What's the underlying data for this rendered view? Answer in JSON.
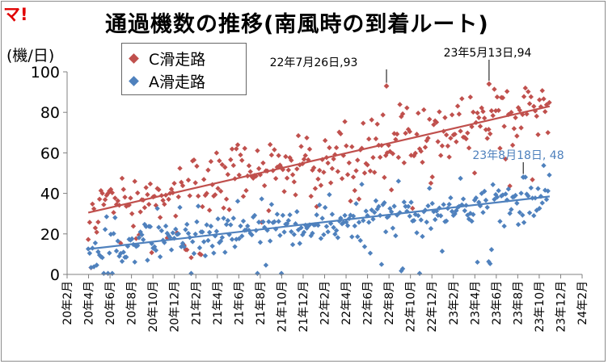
{
  "logo": "マ!",
  "chart_data": {
    "type": "scatter",
    "title": "通過機数の推移(南風時の到着ルート)",
    "ylabel": "(機/日)",
    "ylim": [
      0,
      100
    ],
    "yticks": [
      0,
      20,
      40,
      60,
      80,
      100
    ],
    "xlim": [
      "2020-02-01",
      "2024-02-01"
    ],
    "x_tick_labels": [
      "20年2月",
      "20年4月",
      "20年6月",
      "20年8月",
      "20年10月",
      "20年12月",
      "21年2月",
      "21年4月",
      "21年6月",
      "21年8月",
      "21年10月",
      "21年12月",
      "22年2月",
      "22年4月",
      "22年6月",
      "22年8月",
      "22年10月",
      "22年12月",
      "23年2月",
      "23年4月",
      "23年6月",
      "23年8月",
      "23年10月",
      "23年12月",
      "24年2月"
    ],
    "grid": false,
    "legend_position": "top-left",
    "series": [
      {
        "name": "C滑走路",
        "color": "#c0504d",
        "marker": "diamond",
        "trend": {
          "start": [
            "2020-04-01",
            30.5
          ],
          "end": [
            "2023-11-01",
            83
          ]
        }
      },
      {
        "name": "A滑走路",
        "color": "#4f81bd",
        "marker": "diamond",
        "trend": {
          "start": [
            "2020-04-01",
            12.5
          ],
          "end": [
            "2023-11-01",
            38.5
          ]
        }
      }
    ],
    "annotations": [
      {
        "text": "22年7月26日,93",
        "series": "C滑走路",
        "x": "2022-07-26",
        "y": 93,
        "color": "#000000"
      },
      {
        "text": "23年5月13日,94",
        "series": "C滑走路",
        "x": "2023-05-13",
        "y": 94,
        "color": "#000000"
      },
      {
        "text": "23年8月18日, 48",
        "series": "A滑走路",
        "x": "2023-08-18",
        "y": 48,
        "color": "#4f81bd"
      }
    ]
  }
}
